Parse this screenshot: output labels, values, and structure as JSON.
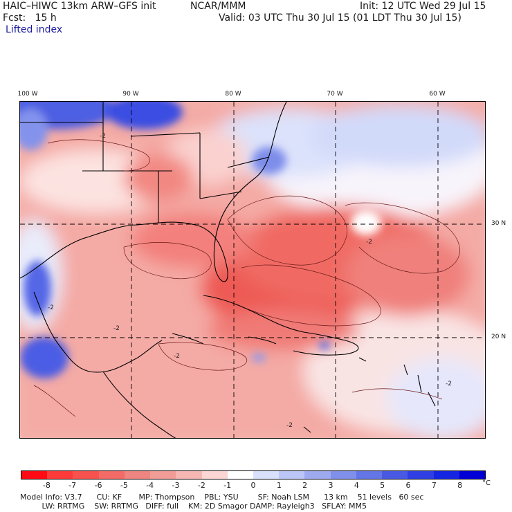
{
  "header": {
    "model": "HAIC–HIWC 13km ARW–GFS init",
    "center": "NCAR/MMM",
    "init": "Init: 12 UTC Wed 29 Jul 15",
    "fcst": "Fcst:   15 h",
    "valid": "Valid: 03 UTC Thu 30 Jul 15 (01 LDT Thu 30 Jul 15)",
    "field": "Lifted index"
  },
  "map": {
    "lon_labels": [
      "100 W",
      "90 W",
      "80 W",
      "70 W",
      "60 W"
    ],
    "lat_labels": [
      "30 N",
      "20 N"
    ],
    "contour_labels": [
      "-2",
      "-2",
      "-2",
      "-2",
      "-2",
      "-2",
      "-2"
    ]
  },
  "colorbar": {
    "labels": [
      "-8",
      "-7",
      "-6",
      "-5",
      "-4",
      "-3",
      "-2",
      "-1",
      "0",
      "1",
      "2",
      "3",
      "4",
      "5",
      "6",
      "7",
      "8"
    ],
    "unit": "°C",
    "colors": [
      "#ff0a14",
      "#ff3a3a",
      "#f8524f",
      "#f36a66",
      "#ee8580",
      "#f19c97",
      "#f6b7b3",
      "#fbd6d4",
      "#ffffff",
      "#d9e0fb",
      "#bcc6f6",
      "#9eaaef",
      "#8090ea",
      "#6475e6",
      "#4a59e4",
      "#2f3fe4",
      "#1526e2",
      "#0000d6"
    ]
  },
  "footer": {
    "line1": "Model Info: V3.7      CU: KF       MP: Thompson    PBL: YSU        SF: Noah LSM      13 km    51 levels   60 sec",
    "line2": "         LW: RRTMG    SW: RRTMG   DIFF: full    KM: 2D Smagor DAMP: Rayleigh3   SFLAY: MM5"
  }
}
